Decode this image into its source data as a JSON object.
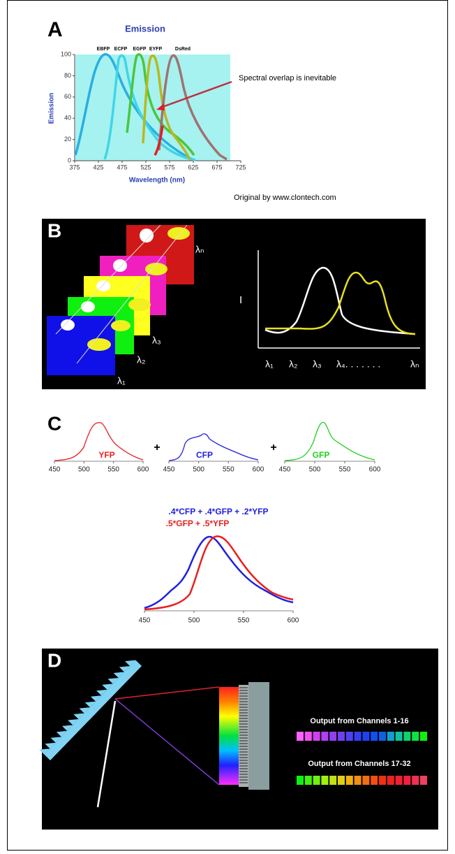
{
  "panel_a": {
    "label": "A",
    "title": "Emission",
    "y_label": "Emission",
    "x_label": "Wavelength (nm)",
    "curve_labels": [
      "EBFP",
      "ECFP",
      "EGFP",
      "EYFP",
      "DsRed"
    ],
    "xticks": [
      375,
      425,
      475,
      525,
      575,
      625,
      675,
      725
    ],
    "yticks": [
      0,
      20,
      40,
      60,
      80,
      100
    ],
    "annotation": "Spectral overlap is inevitable",
    "credit": "Original by www.clontech.com"
  },
  "panel_b": {
    "label": "B",
    "stack_labels": [
      "λ₁",
      "λ₂",
      "λ₃",
      "λₙ"
    ],
    "y_label": "I",
    "x_labels": [
      "λ₁",
      "λ₂",
      "λ₃",
      "λ₄. . . . . . .",
      "λₙ"
    ]
  },
  "panel_c": {
    "label": "C",
    "spectra": [
      {
        "name": "YFP",
        "xticks": [
          450,
          500,
          550,
          600
        ]
      },
      {
        "name": "CFP",
        "xticks": [
          450,
          500,
          550,
          600
        ]
      },
      {
        "name": "GFP",
        "xticks": [
          450,
          500,
          550,
          600
        ]
      }
    ],
    "operators": [
      "+",
      "+"
    ],
    "mix_labels": [
      ".4*CFP + .4*GFP + .2*YFP",
      ".5*GFP + .5*YFP"
    ],
    "mix_xticks": [
      450,
      500,
      550,
      600
    ]
  },
  "panel_d": {
    "label": "D",
    "outputs": [
      "Output from Channels 1-16",
      "Output from Channels 17-32"
    ]
  }
}
